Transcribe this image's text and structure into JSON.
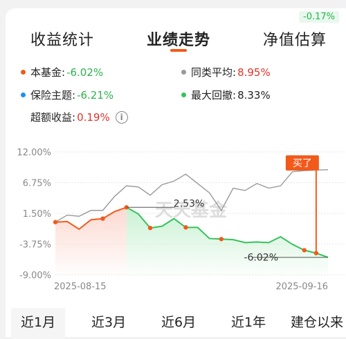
{
  "badge": "-0.17%",
  "tabs": [
    {
      "label": "收益统计"
    },
    {
      "label": "业绩走势"
    },
    {
      "label": "净值估算"
    }
  ],
  "legend": {
    "fund": {
      "label": "本基金:",
      "value": "-6.02%"
    },
    "peer": {
      "label": "同类平均:",
      "value": "8.95%"
    },
    "theme": {
      "label": "保险主题:",
      "value": "-6.21%"
    },
    "drawdown": {
      "label": "最大回撤:",
      "value": "8.33%"
    },
    "excess": {
      "label": "超额收益:",
      "value": "0.19%"
    }
  },
  "colors": {
    "fund": "#f25a1b",
    "peer": "#999999",
    "theme": "#1e8ff0",
    "drawdown": "#35c25a",
    "accent": "#f25a1b"
  },
  "watermark": "天天基金",
  "buy_label": "买了",
  "periods": [
    {
      "label": "近1月"
    },
    {
      "label": "近3月"
    },
    {
      "label": "近6月"
    },
    {
      "label": "近1年"
    },
    {
      "label": "建仓以来"
    }
  ],
  "chart_data": {
    "type": "line",
    "y_ticks": [
      "12.00%",
      "6.75%",
      "1.50%",
      "-3.75%",
      "-9.00%"
    ],
    "x_ticks": [
      "2025-08-15",
      "2025-09-16"
    ],
    "ylim": [
      -9.0,
      12.0
    ],
    "annotations": [
      {
        "text": "2.53%",
        "index": 6
      },
      {
        "text": "-6.02%",
        "index": 23
      }
    ],
    "buy_index": 22,
    "drawdown_range": [
      6,
      23
    ],
    "series": [
      {
        "name": "本基金",
        "values": [
          0.0,
          0.1,
          -1.2,
          0.4,
          0.6,
          1.8,
          2.53,
          1.4,
          -1.0,
          -0.7,
          0.6,
          -0.9,
          -0.9,
          -2.8,
          -2.9,
          -3.0,
          -3.5,
          -3.4,
          -3.5,
          -2.5,
          -3.8,
          -4.8,
          -5.3,
          -6.02
        ]
      },
      {
        "name": "同类平均",
        "values": [
          0.0,
          1.2,
          1.0,
          2.0,
          2.0,
          4.4,
          6.2,
          6.0,
          4.6,
          6.4,
          7.0,
          8.2,
          6.6,
          5.0,
          2.0,
          5.8,
          5.4,
          6.6,
          5.8,
          6.2,
          8.6,
          8.8,
          8.9,
          8.95
        ]
      }
    ]
  }
}
